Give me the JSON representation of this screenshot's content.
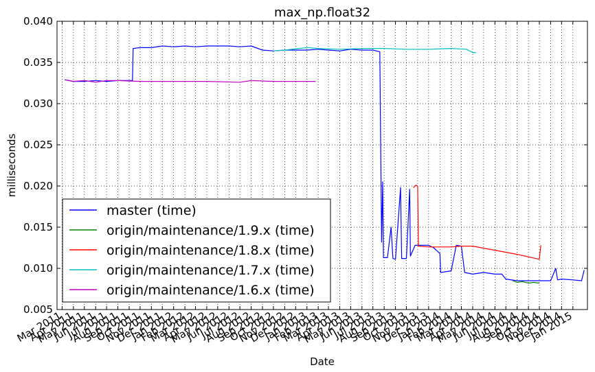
{
  "chart_data": {
    "type": "line",
    "title": "max_np.float32",
    "xlabel": "Date",
    "ylabel": "milliseconds",
    "ylim": [
      0.005,
      0.04
    ],
    "xlim": [
      "2011-02-15",
      "2015-02-10"
    ],
    "y_ticks": [
      "0.005",
      "0.010",
      "0.015",
      "0.020",
      "0.025",
      "0.030",
      "0.035",
      "0.040"
    ],
    "x_ticks": [
      {
        "date": "2011-03-01",
        "label": "Mar 2011"
      },
      {
        "date": "2011-04-01",
        "label": "Apr 2011"
      },
      {
        "date": "2011-05-01",
        "label": "May 2011"
      },
      {
        "date": "2011-06-01",
        "label": "Jun 2011"
      },
      {
        "date": "2011-07-01",
        "label": "Jul 2011"
      },
      {
        "date": "2011-08-01",
        "label": "Aug 2011"
      },
      {
        "date": "2011-09-01",
        "label": "Sep 2011"
      },
      {
        "date": "2011-10-01",
        "label": "Oct 2011"
      },
      {
        "date": "2011-11-01",
        "label": "Nov 2011"
      },
      {
        "date": "2011-12-01",
        "label": "Dec 2011"
      },
      {
        "date": "2012-01-01",
        "label": "Jan 2012"
      },
      {
        "date": "2012-02-01",
        "label": "Feb 2012"
      },
      {
        "date": "2012-03-01",
        "label": "Mar 2012"
      },
      {
        "date": "2012-04-01",
        "label": "Apr 2012"
      },
      {
        "date": "2012-05-01",
        "label": "May 2012"
      },
      {
        "date": "2012-06-01",
        "label": "Jun 2012"
      },
      {
        "date": "2012-07-01",
        "label": "Jul 2012"
      },
      {
        "date": "2012-08-01",
        "label": "Aug 2012"
      },
      {
        "date": "2012-09-01",
        "label": "Sep 2012"
      },
      {
        "date": "2012-10-01",
        "label": "Oct 2012"
      },
      {
        "date": "2012-11-01",
        "label": "Nov 2012"
      },
      {
        "date": "2012-12-01",
        "label": "Dec 2012"
      },
      {
        "date": "2013-01-01",
        "label": "Jan 2013"
      },
      {
        "date": "2013-02-01",
        "label": "Feb 2013"
      },
      {
        "date": "2013-03-01",
        "label": "Mar 2013"
      },
      {
        "date": "2013-04-01",
        "label": "Apr 2013"
      },
      {
        "date": "2013-05-01",
        "label": "May 2013"
      },
      {
        "date": "2013-06-01",
        "label": "Jun 2013"
      },
      {
        "date": "2013-07-01",
        "label": "Jul 2013"
      },
      {
        "date": "2013-08-01",
        "label": "Aug 2013"
      },
      {
        "date": "2013-09-01",
        "label": "Sep 2013"
      },
      {
        "date": "2013-10-01",
        "label": "Oct 2013"
      },
      {
        "date": "2013-11-01",
        "label": "Nov 2013"
      },
      {
        "date": "2013-12-01",
        "label": "Dec 2013"
      },
      {
        "date": "2014-01-01",
        "label": "Jan 2014"
      },
      {
        "date": "2014-02-01",
        "label": "Feb 2014"
      },
      {
        "date": "2014-03-01",
        "label": "Mar 2014"
      },
      {
        "date": "2014-04-01",
        "label": "Apr 2014"
      },
      {
        "date": "2014-05-01",
        "label": "May 2014"
      },
      {
        "date": "2014-06-01",
        "label": "Jun 2014"
      },
      {
        "date": "2014-07-01",
        "label": "Jul 2014"
      },
      {
        "date": "2014-08-01",
        "label": "Aug 2014"
      },
      {
        "date": "2014-09-01",
        "label": "Sep 2014"
      },
      {
        "date": "2014-10-01",
        "label": "Oct 2014"
      },
      {
        "date": "2014-11-01",
        "label": "Nov 2014"
      },
      {
        "date": "2014-12-01",
        "label": "Dec 2014"
      },
      {
        "date": "2015-01-01",
        "label": "Jan 2015"
      }
    ],
    "grid": true,
    "legend_position": "lower-left",
    "series": [
      {
        "name": "master (time)",
        "color": "#0000ff",
        "points": [
          [
            "2011-03-08",
            0.0329
          ],
          [
            "2011-04-01",
            0.0327
          ],
          [
            "2011-05-01",
            0.0327
          ],
          [
            "2011-06-01",
            0.0328
          ],
          [
            "2011-07-01",
            0.0327
          ],
          [
            "2011-08-01",
            0.0328
          ],
          [
            "2011-09-01",
            0.0328
          ],
          [
            "2011-09-10",
            0.0328
          ],
          [
            "2011-09-12",
            0.0367
          ],
          [
            "2011-10-01",
            0.0368
          ],
          [
            "2011-11-01",
            0.0368
          ],
          [
            "2011-12-01",
            0.037
          ],
          [
            "2012-01-01",
            0.0369
          ],
          [
            "2012-02-01",
            0.037
          ],
          [
            "2012-03-01",
            0.0369
          ],
          [
            "2012-04-01",
            0.037
          ],
          [
            "2012-05-01",
            0.037
          ],
          [
            "2012-06-01",
            0.037
          ],
          [
            "2012-07-01",
            0.0369
          ],
          [
            "2012-08-01",
            0.037
          ],
          [
            "2012-09-01",
            0.0365
          ],
          [
            "2012-10-01",
            0.0364
          ],
          [
            "2012-11-01",
            0.0365
          ],
          [
            "2012-12-01",
            0.0365
          ],
          [
            "2013-01-01",
            0.0365
          ],
          [
            "2013-02-01",
            0.0366
          ],
          [
            "2013-03-01",
            0.0365
          ],
          [
            "2013-04-01",
            0.0364
          ],
          [
            "2013-05-01",
            0.0366
          ],
          [
            "2013-06-01",
            0.0365
          ],
          [
            "2013-07-01",
            0.0365
          ],
          [
            "2013-07-20",
            0.0363
          ],
          [
            "2013-07-25",
            0.0132
          ],
          [
            "2013-07-28",
            0.0205
          ],
          [
            "2013-07-30",
            0.0113
          ],
          [
            "2013-08-10",
            0.0113
          ],
          [
            "2013-08-20",
            0.015
          ],
          [
            "2013-08-25",
            0.0112
          ],
          [
            "2013-09-01",
            0.0111
          ],
          [
            "2013-09-15",
            0.0198
          ],
          [
            "2013-09-18",
            0.0112
          ],
          [
            "2013-10-01",
            0.0112
          ],
          [
            "2013-10-10",
            0.0196
          ],
          [
            "2013-10-12",
            0.0115
          ],
          [
            "2013-10-25",
            0.0128
          ],
          [
            "2013-11-10",
            0.0128
          ],
          [
            "2013-11-20",
            0.0128
          ],
          [
            "2013-12-01",
            0.0128
          ],
          [
            "2013-12-15",
            0.0125
          ],
          [
            "2014-01-01",
            0.0118
          ],
          [
            "2014-01-03",
            0.0095
          ],
          [
            "2014-02-01",
            0.0097
          ],
          [
            "2014-02-15",
            0.0128
          ],
          [
            "2014-03-01",
            0.0127
          ],
          [
            "2014-03-10",
            0.0095
          ],
          [
            "2014-04-01",
            0.0093
          ],
          [
            "2014-05-01",
            0.0095
          ],
          [
            "2014-06-01",
            0.0093
          ],
          [
            "2014-06-20",
            0.0093
          ],
          [
            "2014-07-01",
            0.0087
          ],
          [
            "2014-08-01",
            0.0085
          ],
          [
            "2014-09-01",
            0.0085
          ],
          [
            "2014-10-01",
            0.0085
          ],
          [
            "2014-11-01",
            0.0085
          ],
          [
            "2014-11-15",
            0.01
          ],
          [
            "2014-11-20",
            0.0086
          ],
          [
            "2014-12-01",
            0.0087
          ],
          [
            "2015-01-01",
            0.0086
          ],
          [
            "2015-01-25",
            0.0085
          ],
          [
            "2015-02-01",
            0.0098
          ]
        ]
      },
      {
        "name": "origin/maintenance/1.9.x (time)",
        "color": "#008000",
        "points": [
          [
            "2014-07-20",
            0.0085
          ],
          [
            "2014-08-01",
            0.0083
          ],
          [
            "2014-08-15",
            0.0084
          ],
          [
            "2014-09-01",
            0.0082
          ],
          [
            "2014-09-15",
            0.0083
          ],
          [
            "2014-10-01",
            0.0082
          ]
        ]
      },
      {
        "name": "origin/maintenance/1.8.x (time)",
        "color": "#ff0000",
        "points": [
          [
            "2013-10-20",
            0.0198
          ],
          [
            "2013-10-27",
            0.0201
          ],
          [
            "2013-11-01",
            0.02
          ],
          [
            "2013-11-03",
            0.0127
          ],
          [
            "2013-12-01",
            0.0126
          ],
          [
            "2014-01-01",
            0.0126
          ],
          [
            "2014-02-01",
            0.0126
          ],
          [
            "2014-03-01",
            0.0127
          ],
          [
            "2014-04-01",
            0.0127
          ],
          [
            "2014-06-01",
            0.0122
          ],
          [
            "2014-08-01",
            0.0117
          ],
          [
            "2014-10-01",
            0.0111
          ],
          [
            "2014-10-05",
            0.0128
          ]
        ]
      },
      {
        "name": "origin/maintenance/1.7.x (time)",
        "color": "#00bfbf",
        "points": [
          [
            "2012-10-01",
            0.0364
          ],
          [
            "2012-11-01",
            0.0365
          ],
          [
            "2013-01-01",
            0.0368
          ],
          [
            "2013-02-01",
            0.0367
          ],
          [
            "2013-04-01",
            0.0366
          ],
          [
            "2013-06-01",
            0.0367
          ],
          [
            "2013-08-01",
            0.0367
          ],
          [
            "2013-10-01",
            0.0366
          ],
          [
            "2013-12-01",
            0.0366
          ],
          [
            "2014-02-01",
            0.0367
          ],
          [
            "2014-03-15",
            0.0366
          ],
          [
            "2014-04-01",
            0.0362
          ],
          [
            "2014-04-10",
            0.0362
          ]
        ]
      },
      {
        "name": "origin/maintenance/1.6.x (time)",
        "color": "#bf00bf",
        "points": [
          [
            "2011-03-10",
            0.0329
          ],
          [
            "2011-04-01",
            0.0327
          ],
          [
            "2011-05-01",
            0.0328
          ],
          [
            "2011-06-01",
            0.0326
          ],
          [
            "2011-07-01",
            0.0328
          ],
          [
            "2011-08-01",
            0.0328
          ],
          [
            "2011-10-01",
            0.0327
          ],
          [
            "2012-01-01",
            0.0327
          ],
          [
            "2012-04-01",
            0.0327
          ],
          [
            "2012-07-01",
            0.0326
          ],
          [
            "2012-08-01",
            0.0328
          ],
          [
            "2012-10-01",
            0.0327
          ],
          [
            "2013-01-01",
            0.0327
          ],
          [
            "2013-01-25",
            0.0327
          ]
        ]
      }
    ]
  }
}
